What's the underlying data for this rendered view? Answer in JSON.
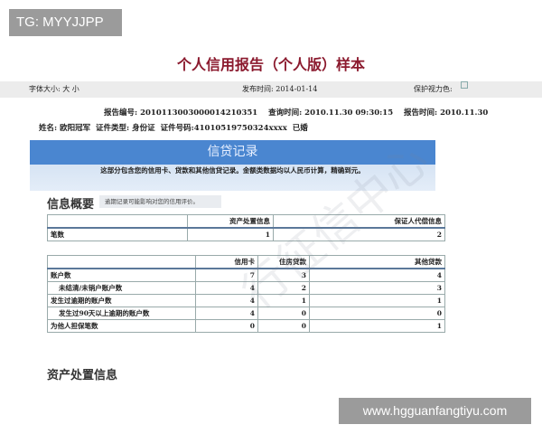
{
  "badge": "TG: MYYJJPP",
  "title": "个人信用报告（个人版）样本",
  "toolbar": {
    "font_size_label": "字体大小: 大 小",
    "publish_label": "发布时间: 2014-01-14",
    "eye_label": "保护视力色:",
    "swatches": [
      "#e8e8e8",
      "#9ab0d0",
      "#e8e8e8",
      "#e8e8e8",
      "#e8e8e8",
      "#e8e8e8"
    ]
  },
  "report": {
    "number": "报告编号: 2010113003000014210351",
    "query_time": "查询时间: 2010.11.30 09:30:15",
    "report_time": "报告时间: 2010.11.30"
  },
  "person": {
    "name": "姓名: 欧阳冠军",
    "id_type": "证件类型: 身份证",
    "id_number": "证件号码:41010519750324xxxx",
    "marital": "已婚"
  },
  "credit": {
    "heading": "信贷记录",
    "desc": "这部分包含您的信用卡、贷款和其他信贷记录。金额类数据均以人民币计算，精确到元。"
  },
  "summary": {
    "heading": "信息概要",
    "note": "逾期记录可能影响对您的信用评价。",
    "table1": {
      "headers": [
        "",
        "资产处置信息",
        "保证人代偿信息"
      ],
      "rows": [
        [
          "笔数",
          "1",
          "2"
        ]
      ]
    },
    "table2": {
      "headers": [
        "",
        "信用卡",
        "住房贷款",
        "其他贷款"
      ],
      "rows": [
        [
          "账户数",
          "7",
          "3",
          "4"
        ],
        [
          "未结清/未销户账户数",
          "4",
          "2",
          "3"
        ],
        [
          "发生过逾期的账户数",
          "4",
          "1",
          "1"
        ],
        [
          "发生过90天以上逾期的账户数",
          "4",
          "0",
          "0"
        ],
        [
          "为他人担保笔数",
          "0",
          "0",
          "1"
        ]
      ]
    }
  },
  "asset_heading": "资产处置信息",
  "watermark": "行征信中心",
  "site": "www.hgguanfangtiyu.com",
  "colors": {
    "title": "#8b1a2e",
    "header_blue": "#4a86d0"
  }
}
